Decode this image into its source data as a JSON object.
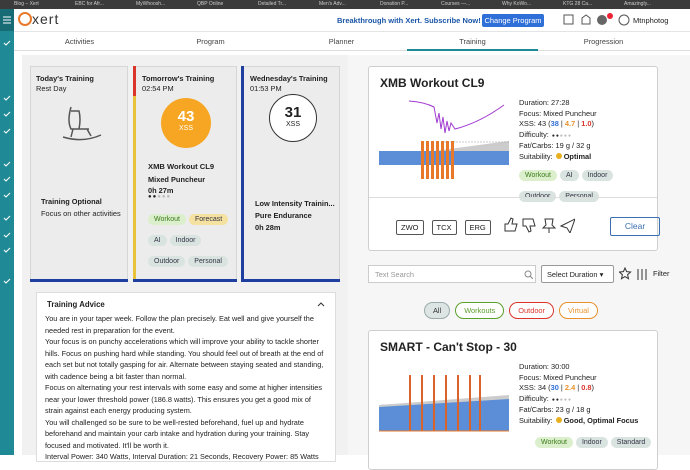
{
  "browser_tabs": [
    "Blog – Xert",
    "EBC for Afr...",
    "MyWhoosh...",
    "QBP Online",
    "Detailed Tr...",
    "Men's Adv...",
    "Donation P...",
    "Courses —...",
    "Why KoWo...",
    "KTG 28 Ca...",
    "Amazingly..."
  ],
  "header": {
    "logo": "xert",
    "promo": "Breakthrough with Xert. Subscribe Now!",
    "button": "Change Program",
    "user": "Mtnphotog"
  },
  "nav": [
    "Activities",
    "Program",
    "Planner",
    "Training",
    "Progression"
  ],
  "cards": [
    {
      "title": "Today's Training",
      "subtitle": "Rest Day",
      "heading": "Training Optional",
      "text": "Focus on other activities"
    },
    {
      "title": "Tomorrow's Training",
      "time": "02:54 PM",
      "xss": "43",
      "xss_unit": "XSS",
      "workout": "XMB Workout CL9",
      "focus": "Mixed Puncheur",
      "duration": "0h 27m",
      "tags": [
        {
          "text": "Workout",
          "color": "#dcefcc"
        },
        {
          "text": "Forecast",
          "color": "#f6e2a0"
        },
        {
          "text": "AI",
          "color": "#d9e4e0"
        },
        {
          "text": "Indoor",
          "color": "#d9e4e0"
        },
        {
          "text": "Outdoor",
          "color": "#d9e4e0"
        },
        {
          "text": "Personal",
          "color": "#d9e4e0"
        }
      ]
    },
    {
      "title": "Wednesday's Training",
      "time": "01:53 PM",
      "xss": "31",
      "xss_unit": "XSS",
      "workout": "Low Intensity Trainin...",
      "focus": "Pure Endurance",
      "duration": "0h 28m"
    }
  ],
  "advice": {
    "title": "Training Advice",
    "paragraphs": [
      "You are in your taper week. Follow the plan precisely. Eat well and give yourself the needed rest in preparation for the event.",
      "Your focus is on punchy accelerations which will improve your ability to tackle shorter hills. Focus on pushing hard while standing. You should feel out of breath at the end of each set but not totally gasping for air. Alternate between staying seated and standing, with cadence being a bit faster than normal.",
      "Focus on alternating your rest intervals with some easy and some at higher intensities near your lower threshold power (186.8 watts). This ensures you get a good mix of strain against each energy producing system.",
      "You will challenged so be sure to be well-rested beforehand, fuel up and hydrate beforehand and maintain your carb intake and hydration during your training. Stay focused and motivated. It'll be worth it.",
      "Interval Power: 340 Watts, Interval Duration: 21 Seconds, Recovery Power: 85 Watts"
    ]
  },
  "workouts": [
    {
      "title": "XMB Workout CL9",
      "duration": "Duration: 27:28",
      "focus": "Focus: Mixed Puncheur",
      "xss": [
        "XSS: 43 (",
        "38",
        " | ",
        "4.7",
        " | ",
        "1.0",
        ")"
      ],
      "difficulty": "Difficulty:",
      "fat_carbs": "Fat/Carbs: 19 g / 32 g",
      "suitability": [
        "Suitability:",
        "Optimal"
      ],
      "tags": [
        {
          "text": "Workout",
          "color": "#dcefcc"
        },
        {
          "text": "AI",
          "color": "#d9e4e0"
        },
        {
          "text": "Indoor",
          "color": "#d9e4e0"
        },
        {
          "text": "Outdoor",
          "color": "#d9e4e0"
        },
        {
          "text": "Personal",
          "color": "#d9e4e0"
        }
      ]
    },
    {
      "title": "SMART - Can't Stop - 30",
      "duration": "Duration: 30:00",
      "focus": "Focus: Mixed Puncheur",
      "xss": [
        "XSS: 34 (",
        "30",
        " | ",
        "2.4",
        " | ",
        "0.8",
        ")"
      ],
      "difficulty": "Difficulty:",
      "fat_carbs": "Fat/Carbs: 23 g / 18 g",
      "suitability": [
        "Suitability:",
        "Good, Optimal Focus"
      ],
      "tags": [
        {
          "text": "Workout",
          "color": "#dcefcc"
        },
        {
          "text": "Indoor",
          "color": "#d9e4e0"
        },
        {
          "text": "Standard",
          "color": "#d9e4e0"
        }
      ]
    }
  ],
  "actions": {
    "exports": [
      "ZWO",
      "TCX",
      "ERG"
    ],
    "clear": "Clear"
  },
  "search": {
    "placeholder": "Text Search",
    "duration": "Select Duration",
    "filter": "Filter"
  },
  "filters": [
    {
      "text": "All",
      "color": "#9aa"
    },
    {
      "text": "Workouts",
      "color": "#5aa02c"
    },
    {
      "text": "Outdoor",
      "color": "#d9352b"
    },
    {
      "text": "Virtual",
      "color": "#e8912a"
    }
  ]
}
